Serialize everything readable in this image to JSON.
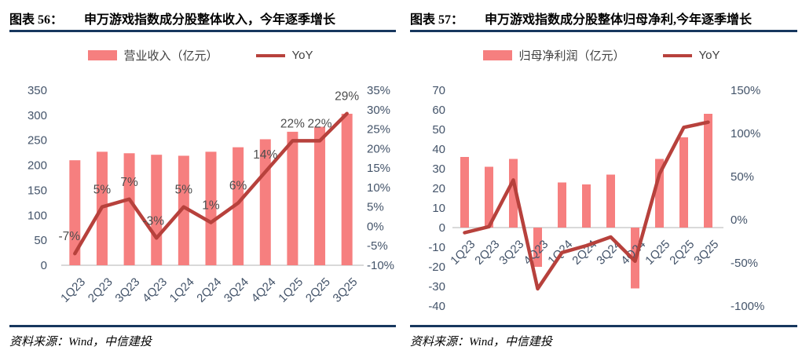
{
  "page": {
    "panels": [
      {
        "figure_label": "图表 56：",
        "title": "申万游戏指数成分股整体收入，今年逐季增长",
        "source": "资料来源：Wind，中信建投"
      },
      {
        "figure_label": "图表 57：",
        "title": "申万游戏指数成分股整体归母净利,今年逐季增长",
        "source": "资料来源：Wind，中信建投"
      }
    ],
    "colors": {
      "bar": "#F67F7F",
      "line": "#B7413C",
      "axis_text": "#44546A",
      "data_label": "#4D4D4D",
      "rule": "#17375E",
      "zero_line": "#D9D9D9"
    }
  },
  "chart_data": [
    {
      "type": "bar+line",
      "title": "申万游戏指数成分股整体收入，今年逐季增长",
      "categories": [
        "1Q23",
        "2Q23",
        "3Q23",
        "4Q23",
        "1Q24",
        "2Q24",
        "3Q24",
        "4Q24",
        "1Q25",
        "2Q25",
        "3Q25"
      ],
      "series": [
        {
          "name": "营业收入（亿元）",
          "type": "bar",
          "axis": "left",
          "values": [
            210,
            227,
            224,
            221,
            219,
            227,
            236,
            252,
            267,
            277,
            303
          ]
        },
        {
          "name": "YoY",
          "type": "line",
          "axis": "right",
          "unit": "%",
          "values": [
            -7,
            5,
            7,
            -3,
            5,
            1,
            6,
            14,
            22,
            22,
            29
          ]
        }
      ],
      "data_labels": [
        "-7%",
        "5%",
        "7%",
        "-3%",
        "5%",
        "1%",
        "6%",
        "14%",
        "22%",
        "22%",
        "29%"
      ],
      "left_axis": {
        "min": 0,
        "max": 350,
        "step": 50
      },
      "right_axis": {
        "min": -10,
        "max": 35,
        "step": 5,
        "format": "percent"
      },
      "legend": [
        "营业收入（亿元）",
        "YoY"
      ],
      "grid": false,
      "legend_position": "top"
    },
    {
      "type": "bar+line",
      "title": "申万游戏指数成分股整体归母净利,今年逐季增长",
      "categories": [
        "1Q23",
        "2Q23",
        "3Q23",
        "4Q23",
        "1Q24",
        "2Q24",
        "3Q24",
        "4Q24",
        "1Q25",
        "2Q25",
        "3Q25"
      ],
      "series": [
        {
          "name": "归母净利润（亿元）",
          "type": "bar",
          "axis": "left",
          "values": [
            36,
            31,
            35,
            -20,
            23,
            22,
            27,
            -31,
            35,
            46,
            58
          ]
        },
        {
          "name": "YoY",
          "type": "line",
          "axis": "right",
          "unit": "%",
          "values": [
            -15,
            -8,
            46,
            -80,
            -38,
            -30,
            -20,
            -48,
            53,
            107,
            113
          ]
        }
      ],
      "left_axis": {
        "min": -40,
        "max": 70,
        "step": 10
      },
      "right_axis": {
        "min": -100,
        "max": 150,
        "step": 50,
        "format": "percent"
      },
      "legend": [
        "归母净利润（亿元）",
        "YoY"
      ],
      "grid": false,
      "legend_position": "top"
    }
  ]
}
